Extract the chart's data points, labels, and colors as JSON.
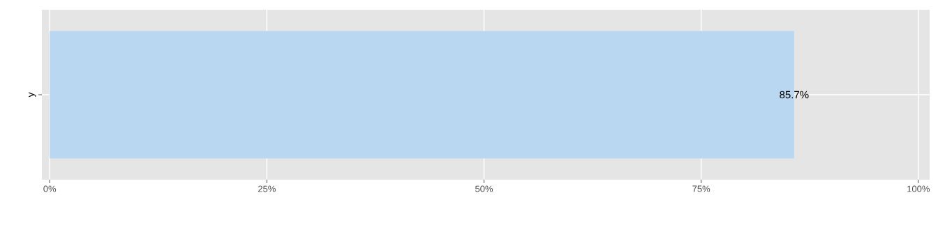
{
  "chart_data": {
    "type": "bar",
    "orientation": "horizontal",
    "categories": [
      "y"
    ],
    "values": [
      85.7
    ],
    "value_labels": [
      "85.7%"
    ],
    "color": "#b9d7f0",
    "xlim": [
      -0.9,
      101.3
    ],
    "xticks": [
      {
        "value": 0,
        "label": "0%"
      },
      {
        "value": 25,
        "label": "25%"
      },
      {
        "value": 50,
        "label": "50%"
      },
      {
        "value": 75,
        "label": "75%"
      },
      {
        "value": 100,
        "label": "100%"
      }
    ],
    "grid": true
  }
}
